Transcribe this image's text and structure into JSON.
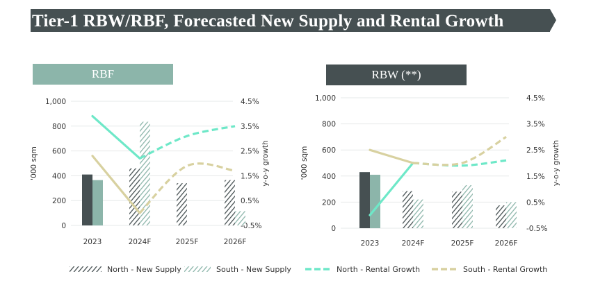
{
  "header": {
    "title": "Tier-1 RBW/RBF, Forecasted New Supply and Rental Growth"
  },
  "colors": {
    "banner": "#465052",
    "north_supply": "#465052",
    "south_supply": "#8cb5aa",
    "north_growth": "#6ee8c8",
    "south_growth": "#d8d1a0",
    "rbf_header": "#8cb5aa",
    "rbw_header": "#465052"
  },
  "legend": {
    "items": [
      {
        "label": "North - New Supply",
        "kind": "hatch-dark"
      },
      {
        "label": "South - New Supply",
        "kind": "hatch-light"
      },
      {
        "label": "North - Rental Growth",
        "kind": "dash-teal"
      },
      {
        "label": "South - Rental Growth",
        "kind": "dash-beige"
      }
    ]
  },
  "chart_data": [
    {
      "type": "bar",
      "title": "RBF",
      "categories": [
        "2023",
        "2024F",
        "2025F",
        "2026F"
      ],
      "ylabel": "'000 sqm",
      "y2label": "y-o-y growth",
      "ylim": [
        0,
        1000
      ],
      "yticks": [
        "0",
        "200",
        "400",
        "600",
        "800",
        "1,000"
      ],
      "y2lim": [
        -0.5,
        4.5
      ],
      "y2ticks": [
        "-0.5%",
        "0.5%",
        "1.5%",
        "2.5%",
        "3.5%",
        "4.5%"
      ],
      "grid": true,
      "forecast_from_index": 1,
      "series": [
        {
          "name": "North - New Supply",
          "type": "bar",
          "values": [
            410,
            460,
            340,
            365
          ]
        },
        {
          "name": "South - New Supply",
          "type": "bar",
          "values": [
            365,
            835,
            0,
            115
          ]
        },
        {
          "name": "North - Rental Growth",
          "type": "line",
          "axis": "right",
          "values": [
            3.9,
            2.2,
            3.1,
            3.5
          ]
        },
        {
          "name": "South - Rental Growth",
          "type": "line",
          "axis": "right",
          "values": [
            2.3,
            0.0,
            1.9,
            1.7
          ]
        }
      ]
    },
    {
      "type": "bar",
      "title": "RBW (**)",
      "categories": [
        "2023",
        "2024F",
        "2025F",
        "2026F"
      ],
      "ylabel": "'000 sqm",
      "y2label": "y-o-y growth",
      "ylim": [
        0,
        1000
      ],
      "yticks": [
        "0",
        "200",
        "400",
        "600",
        "800",
        "1,000"
      ],
      "y2lim": [
        -0.5,
        4.5
      ],
      "y2ticks": [
        "-0.5%",
        "0.5%",
        "1.5%",
        "2.5%",
        "3.5%",
        "4.5%"
      ],
      "grid": true,
      "forecast_from_index": 1,
      "series": [
        {
          "name": "North - New Supply",
          "type": "bar",
          "values": [
            430,
            285,
            280,
            175
          ]
        },
        {
          "name": "South - New Supply",
          "type": "bar",
          "values": [
            410,
            220,
            330,
            200
          ]
        },
        {
          "name": "North - Rental Growth",
          "type": "line",
          "axis": "right",
          "values": [
            0.0,
            2.0,
            1.9,
            2.1
          ]
        },
        {
          "name": "South - Rental Growth",
          "type": "line",
          "axis": "right",
          "values": [
            2.5,
            2.0,
            2.0,
            3.0
          ]
        }
      ]
    }
  ]
}
